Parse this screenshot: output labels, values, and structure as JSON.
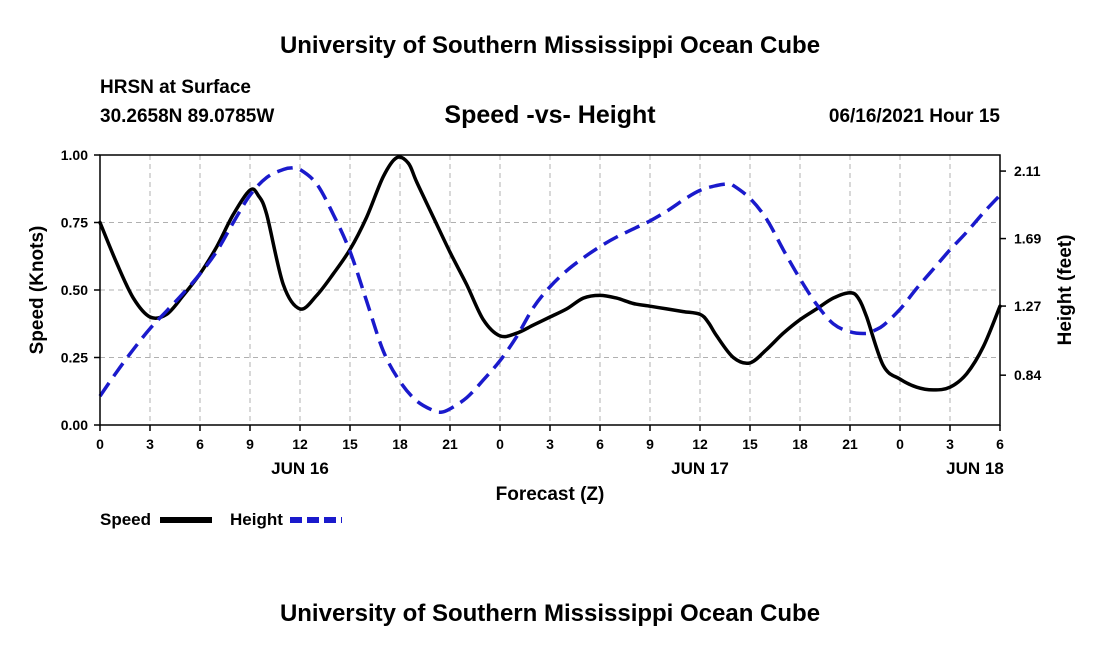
{
  "header": {
    "title_top": "University of Southern Mississippi Ocean Cube",
    "station": "HRSN at Surface",
    "coords": "30.2658N  89.0785W",
    "chart_title": "Speed -vs- Height",
    "date_hour": "06/16/2021 Hour 15"
  },
  "footer": {
    "title_bottom": "University of Southern Mississippi Ocean Cube"
  },
  "colors": {
    "speed": "#000000",
    "height": "#1a1acc",
    "grid": "#b0b0b0"
  },
  "chart_data": {
    "type": "line",
    "title": "Speed -vs- Height",
    "xlabel": "Forecast (Z)",
    "ylabel_left": "Speed (Knots)",
    "ylabel_right": "Height (feet)",
    "x_range_hours": [
      0,
      54
    ],
    "x_ticks": [
      {
        "h": 0,
        "label": "0"
      },
      {
        "h": 3,
        "label": "3"
      },
      {
        "h": 6,
        "label": "6"
      },
      {
        "h": 9,
        "label": "9"
      },
      {
        "h": 12,
        "label": "12"
      },
      {
        "h": 15,
        "label": "15"
      },
      {
        "h": 18,
        "label": "18"
      },
      {
        "h": 21,
        "label": "21"
      },
      {
        "h": 24,
        "label": "0"
      },
      {
        "h": 27,
        "label": "3"
      },
      {
        "h": 30,
        "label": "6"
      },
      {
        "h": 33,
        "label": "9"
      },
      {
        "h": 36,
        "label": "12"
      },
      {
        "h": 39,
        "label": "15"
      },
      {
        "h": 42,
        "label": "18"
      },
      {
        "h": 45,
        "label": "21"
      },
      {
        "h": 48,
        "label": "0"
      },
      {
        "h": 51,
        "label": "3"
      },
      {
        "h": 54,
        "label": "6"
      }
    ],
    "day_labels": [
      {
        "h": 12,
        "label": "JUN 16"
      },
      {
        "h": 36,
        "label": "JUN 17"
      },
      {
        "h": 52.5,
        "label": "JUN 18"
      }
    ],
    "ylim_left": [
      0,
      1
    ],
    "yticks_left": [
      "0.00",
      "0.25",
      "0.50",
      "0.75",
      "1.00"
    ],
    "ylim_right": [
      0.53,
      2.21
    ],
    "yticks_right": [
      {
        "v": 0.84,
        "label": "0.84"
      },
      {
        "v": 1.27,
        "label": "1.27"
      },
      {
        "v": 1.69,
        "label": "1.69"
      },
      {
        "v": 2.11,
        "label": "2.11"
      }
    ],
    "legend": [
      {
        "name": "Speed",
        "style": "solid"
      },
      {
        "name": "Height",
        "style": "dashed"
      }
    ],
    "series": [
      {
        "name": "Speed",
        "axis": "left",
        "x": [
          0,
          1,
          2,
          3,
          4,
          5,
          6,
          7,
          8,
          9,
          9.5,
          10,
          11,
          12,
          13,
          14,
          15,
          16,
          17,
          17.8,
          18.5,
          19,
          20,
          21,
          22,
          23,
          24,
          25,
          26,
          27,
          28,
          29,
          30,
          31,
          32,
          33,
          34,
          35,
          36,
          36.5,
          37,
          38,
          39,
          40,
          41,
          42,
          43,
          44,
          45,
          45.5,
          46,
          47,
          48,
          49,
          50,
          51,
          52,
          53,
          54
        ],
        "values": [
          0.75,
          0.6,
          0.47,
          0.4,
          0.41,
          0.48,
          0.56,
          0.66,
          0.78,
          0.87,
          0.85,
          0.78,
          0.52,
          0.43,
          0.48,
          0.56,
          0.65,
          0.77,
          0.92,
          0.99,
          0.97,
          0.9,
          0.77,
          0.64,
          0.52,
          0.39,
          0.33,
          0.34,
          0.37,
          0.4,
          0.43,
          0.47,
          0.48,
          0.47,
          0.45,
          0.44,
          0.43,
          0.42,
          0.41,
          0.38,
          0.33,
          0.25,
          0.23,
          0.28,
          0.34,
          0.39,
          0.43,
          0.47,
          0.49,
          0.47,
          0.4,
          0.22,
          0.17,
          0.14,
          0.13,
          0.14,
          0.19,
          0.29,
          0.44
        ]
      },
      {
        "name": "Height",
        "axis": "right",
        "x": [
          0,
          1,
          2,
          3,
          4,
          5,
          6,
          7,
          8,
          9,
          10,
          11,
          11.5,
          12,
          13,
          14,
          15,
          16,
          17,
          18,
          19,
          20,
          20.5,
          21,
          22,
          23,
          24,
          25,
          26,
          27,
          28,
          29,
          30,
          31,
          32,
          33,
          34,
          35,
          36,
          37,
          37.7,
          38,
          39,
          40,
          41,
          42,
          43,
          44,
          45,
          46,
          46.5,
          47,
          48,
          49,
          50,
          51,
          52,
          53,
          54
        ],
        "values": [
          0.71,
          0.86,
          1.0,
          1.13,
          1.24,
          1.35,
          1.47,
          1.61,
          1.79,
          1.96,
          2.07,
          2.12,
          2.13,
          2.12,
          2.03,
          1.84,
          1.61,
          1.3,
          0.99,
          0.8,
          0.68,
          0.62,
          0.61,
          0.63,
          0.7,
          0.81,
          0.93,
          1.08,
          1.26,
          1.39,
          1.49,
          1.57,
          1.64,
          1.7,
          1.75,
          1.8,
          1.86,
          1.93,
          1.99,
          2.02,
          2.03,
          2.02,
          1.94,
          1.81,
          1.62,
          1.44,
          1.28,
          1.16,
          1.11,
          1.1,
          1.12,
          1.15,
          1.25,
          1.38,
          1.5,
          1.62,
          1.73,
          1.85,
          1.96
        ]
      }
    ]
  }
}
